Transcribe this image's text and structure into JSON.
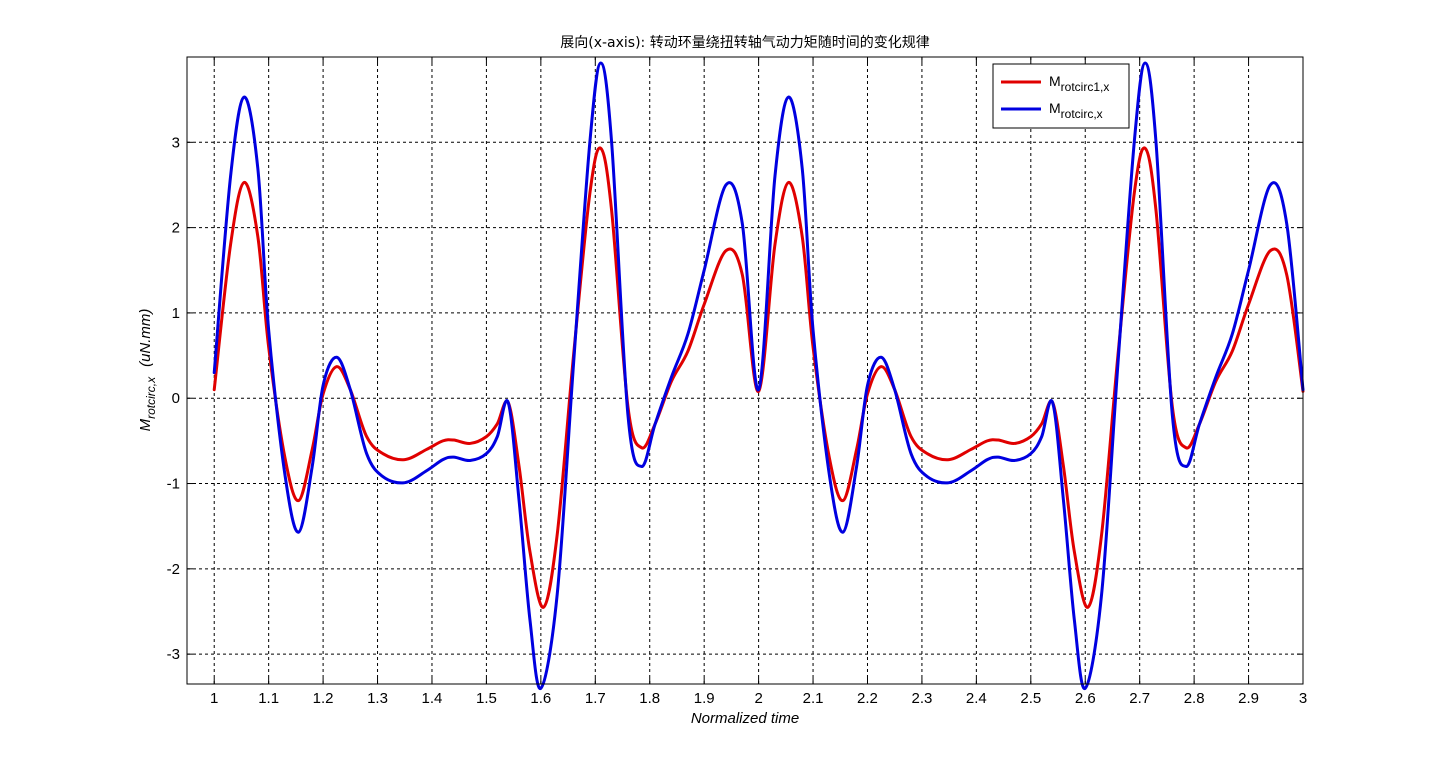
{
  "chart_data": {
    "type": "line",
    "title": "展向(x-axis): 转动环量绕扭转轴气动力矩随时间的变化规律",
    "xlabel": "Normalized time",
    "ylabel": {
      "main": "M",
      "sub": "rotcirc,x",
      "unit": "(uN.mm)"
    },
    "xlim": [
      0.95,
      3.0
    ],
    "ylim": [
      -3.35,
      4.0
    ],
    "xticks": [
      1,
      1.1,
      1.2,
      1.3,
      1.4,
      1.5,
      1.6,
      1.7,
      1.8,
      1.9,
      2,
      2.1,
      2.2,
      2.3,
      2.4,
      2.5,
      2.6,
      2.7,
      2.8,
      2.9,
      3
    ],
    "xtick_labels": [
      "1",
      "1.1",
      "1.2",
      "1.3",
      "1.4",
      "1.5",
      "1.6",
      "1.7",
      "1.8",
      "1.9",
      "2",
      "2.1",
      "2.2",
      "2.3",
      "2.4",
      "2.5",
      "2.6",
      "2.7",
      "2.8",
      "2.9",
      "3"
    ],
    "yticks": [
      -3,
      -2,
      -1,
      0,
      1,
      2,
      3
    ],
    "ytick_labels": [
      "-3",
      "-2",
      "-1",
      "0",
      "1",
      "2",
      "3"
    ],
    "grid": true,
    "legend_position": "top-right",
    "series": [
      {
        "name_main": "M",
        "name_sub": "rotcirc1,x",
        "color": "#e00000",
        "x": [
          1.0,
          1.03,
          1.055,
          1.08,
          1.1,
          1.13,
          1.155,
          1.18,
          1.2,
          1.225,
          1.25,
          1.28,
          1.31,
          1.35,
          1.39,
          1.42,
          1.44,
          1.47,
          1.5,
          1.52,
          1.54,
          1.56,
          1.58,
          1.605,
          1.63,
          1.66,
          1.69,
          1.71,
          1.73,
          1.76,
          1.785,
          1.81,
          1.84,
          1.87,
          1.9,
          1.94,
          1.97,
          2.0,
          2.03,
          2.055,
          2.08,
          2.1,
          2.13,
          2.155,
          2.18,
          2.2,
          2.225,
          2.25,
          2.28,
          2.31,
          2.35,
          2.39,
          2.42,
          2.44,
          2.47,
          2.5,
          2.52,
          2.54,
          2.56,
          2.58,
          2.605,
          2.63,
          2.66,
          2.69,
          2.71,
          2.73,
          2.76,
          2.785,
          2.81,
          2.84,
          2.87,
          2.9,
          2.94,
          2.97,
          3.0
        ],
        "values": [
          0.1,
          1.8,
          2.53,
          1.9,
          0.6,
          -0.7,
          -1.2,
          -0.6,
          0.05,
          0.37,
          0.1,
          -0.45,
          -0.65,
          -0.72,
          -0.6,
          -0.5,
          -0.49,
          -0.53,
          -0.45,
          -0.3,
          -0.05,
          -0.8,
          -1.8,
          -2.45,
          -1.6,
          0.5,
          2.4,
          2.93,
          2.2,
          -0.1,
          -0.58,
          -0.3,
          0.2,
          0.55,
          1.1,
          1.73,
          1.45,
          0.08,
          1.8,
          2.53,
          1.9,
          0.6,
          -0.7,
          -1.2,
          -0.6,
          0.05,
          0.37,
          0.1,
          -0.45,
          -0.65,
          -0.72,
          -0.6,
          -0.5,
          -0.49,
          -0.53,
          -0.45,
          -0.3,
          -0.05,
          -0.8,
          -1.8,
          -2.45,
          -1.6,
          0.5,
          2.4,
          2.93,
          2.2,
          -0.1,
          -0.58,
          -0.3,
          0.2,
          0.55,
          1.1,
          1.73,
          1.45,
          0.08
        ]
      },
      {
        "name_main": "M",
        "name_sub": "rotcirc,x",
        "color": "#0000e0",
        "x": [
          1.0,
          1.03,
          1.055,
          1.08,
          1.1,
          1.13,
          1.155,
          1.18,
          1.2,
          1.225,
          1.25,
          1.28,
          1.31,
          1.35,
          1.39,
          1.42,
          1.44,
          1.47,
          1.5,
          1.52,
          1.54,
          1.56,
          1.58,
          1.6,
          1.63,
          1.66,
          1.69,
          1.71,
          1.73,
          1.76,
          1.785,
          1.81,
          1.84,
          1.87,
          1.9,
          1.94,
          1.97,
          2.0,
          2.03,
          2.055,
          2.08,
          2.1,
          2.13,
          2.155,
          2.18,
          2.2,
          2.225,
          2.25,
          2.28,
          2.31,
          2.35,
          2.39,
          2.42,
          2.44,
          2.47,
          2.5,
          2.52,
          2.54,
          2.56,
          2.58,
          2.6,
          2.63,
          2.66,
          2.69,
          2.71,
          2.73,
          2.76,
          2.785,
          2.81,
          2.84,
          2.87,
          2.9,
          2.94,
          2.97,
          3.0
        ],
        "values": [
          0.3,
          2.6,
          3.53,
          2.7,
          0.8,
          -0.9,
          -1.57,
          -0.8,
          0.15,
          0.48,
          0.1,
          -0.65,
          -0.92,
          -0.99,
          -0.85,
          -0.72,
          -0.69,
          -0.73,
          -0.65,
          -0.45,
          -0.05,
          -1.2,
          -2.6,
          -3.4,
          -2.3,
          0.4,
          3.0,
          3.93,
          3.0,
          -0.2,
          -0.8,
          -0.3,
          0.25,
          0.75,
          1.5,
          2.5,
          2.05,
          0.1,
          2.6,
          3.53,
          2.7,
          0.8,
          -0.9,
          -1.57,
          -0.8,
          0.15,
          0.48,
          0.1,
          -0.65,
          -0.92,
          -0.99,
          -0.85,
          -0.72,
          -0.69,
          -0.73,
          -0.65,
          -0.45,
          -0.05,
          -1.2,
          -2.6,
          -3.4,
          -2.3,
          0.4,
          3.0,
          3.93,
          3.0,
          -0.2,
          -0.8,
          -0.3,
          0.25,
          0.75,
          1.5,
          2.5,
          2.05,
          0.1
        ]
      }
    ]
  }
}
